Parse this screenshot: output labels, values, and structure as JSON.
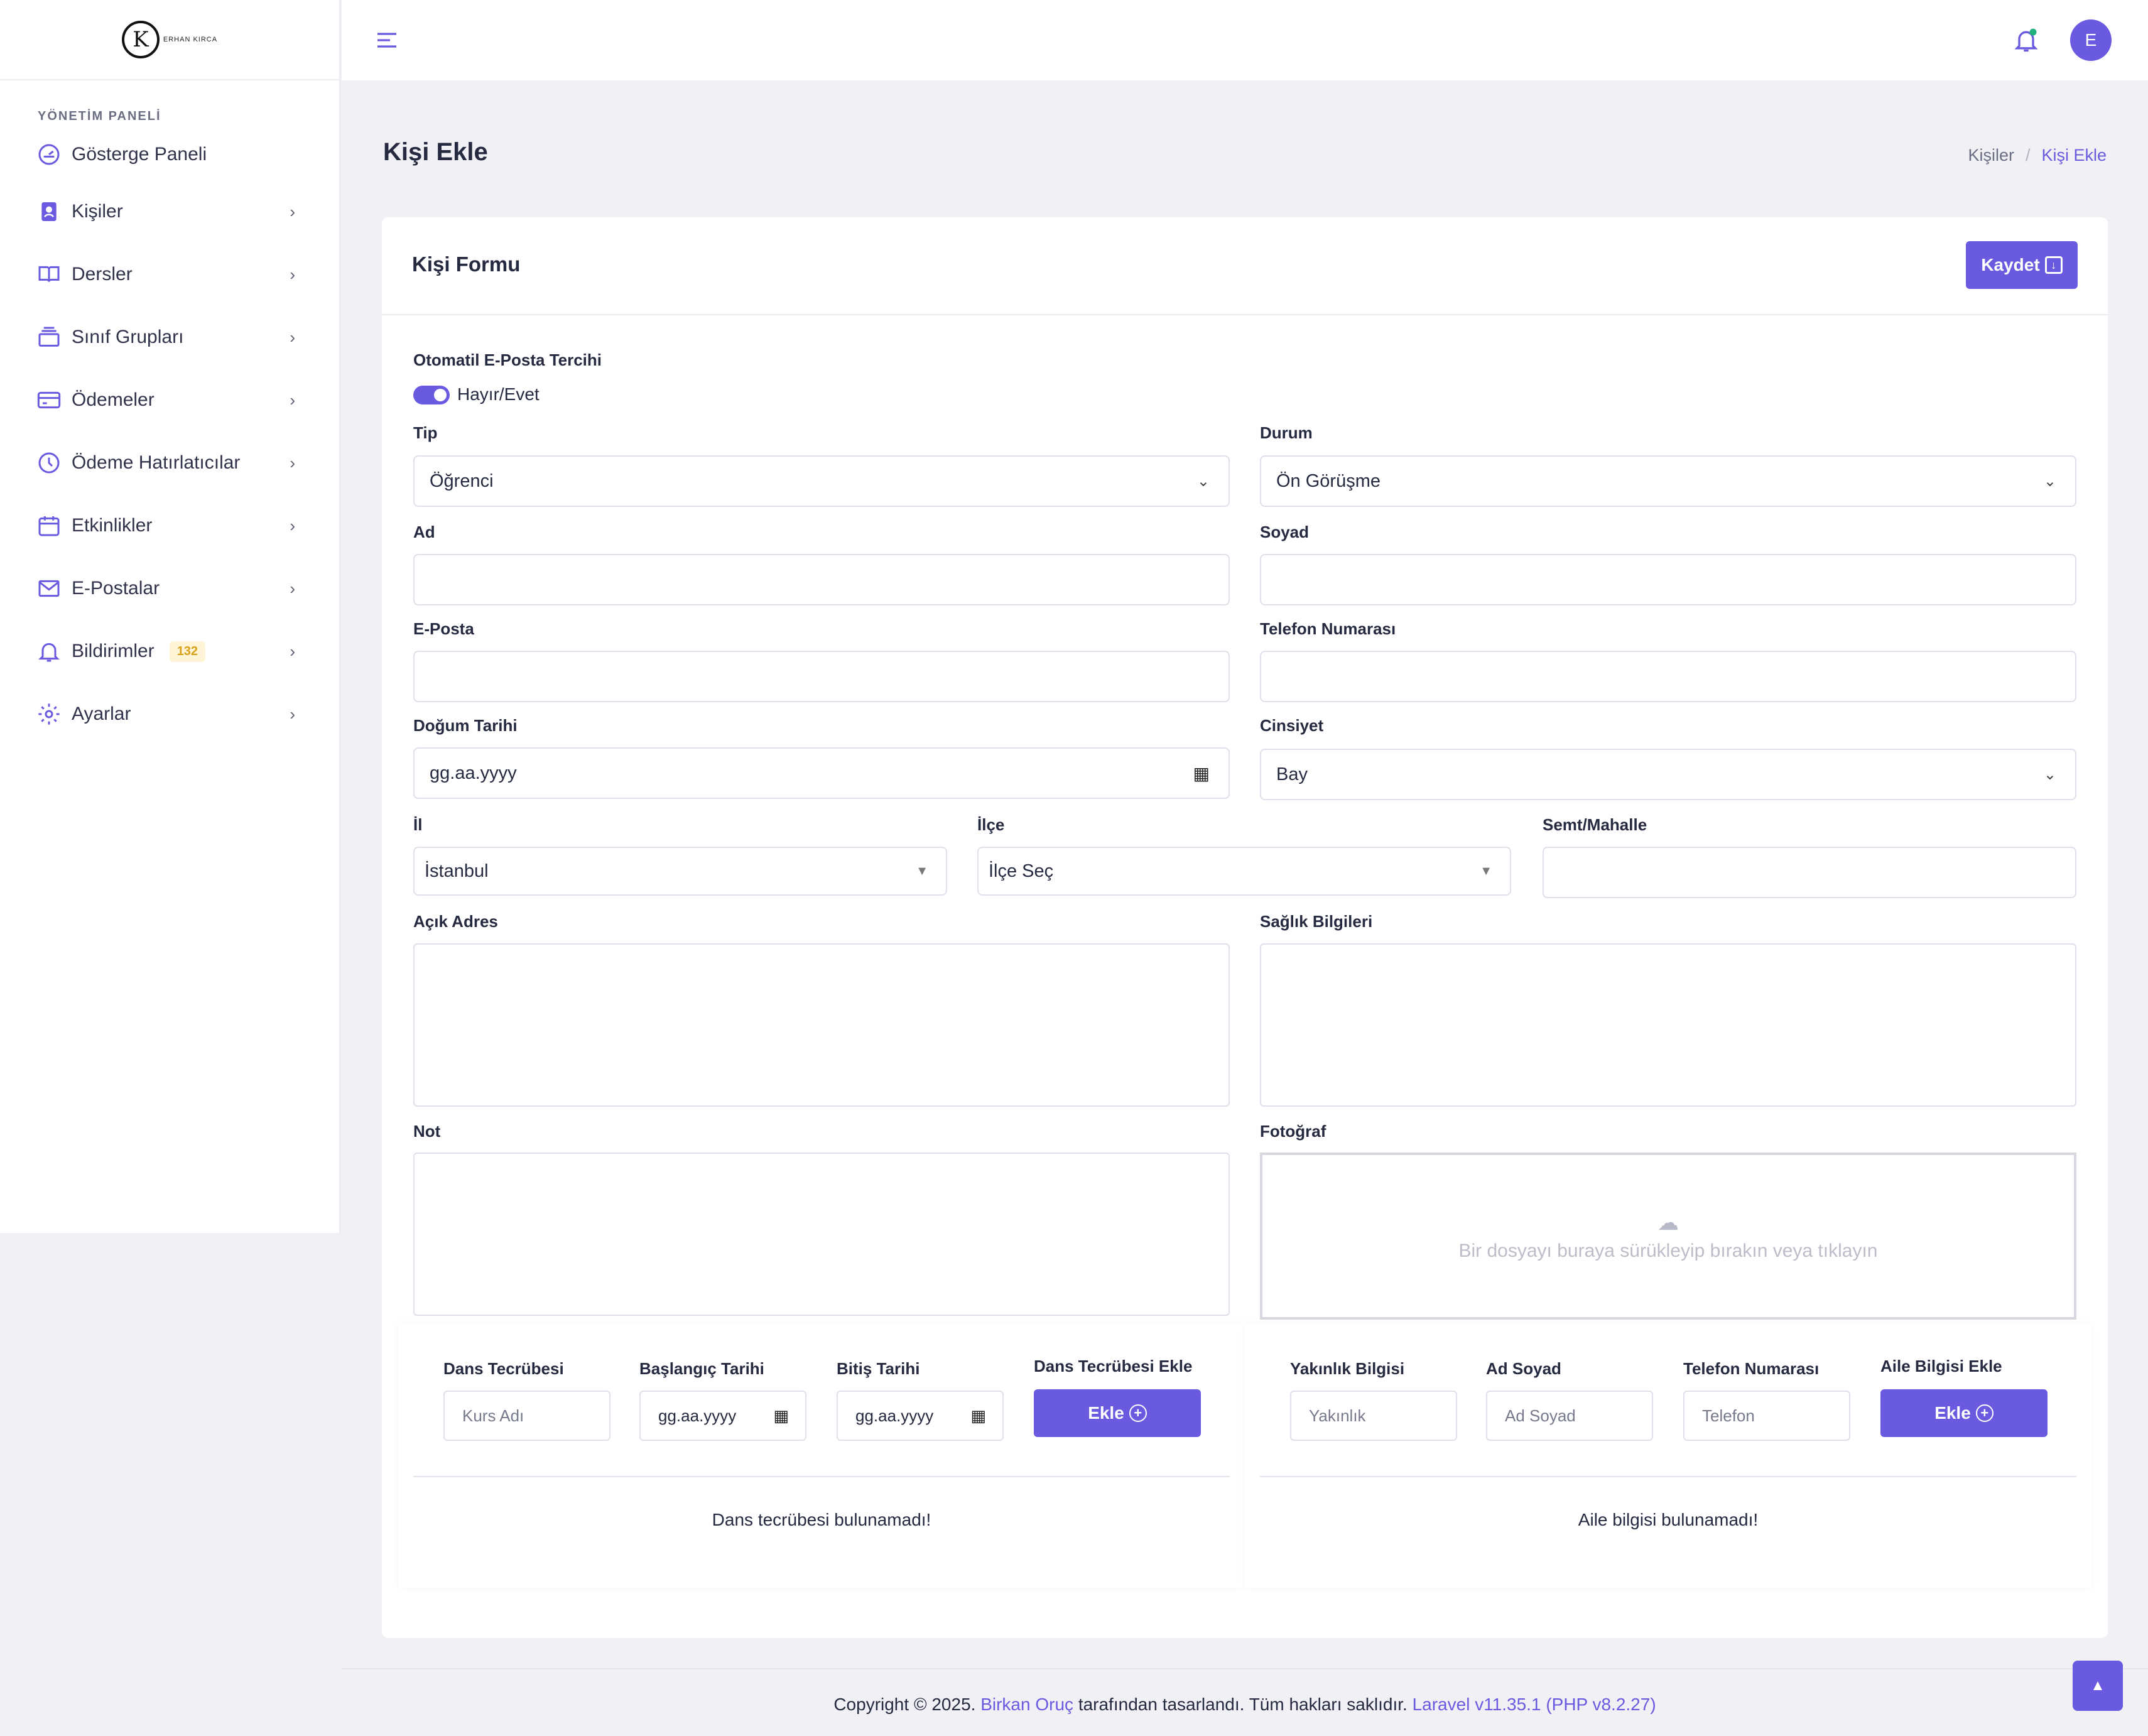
{
  "brand": {
    "logo_text": "ERHAN KIRCA"
  },
  "sidebar": {
    "section_title": "YÖNETİM PANELİ",
    "items": [
      {
        "label": "Gösterge Paneli",
        "icon": "dashboard-icon"
      },
      {
        "label": "Kişiler",
        "icon": "contact-icon"
      },
      {
        "label": "Dersler",
        "icon": "book-icon"
      },
      {
        "label": "Sınıf Grupları",
        "icon": "layers-icon"
      },
      {
        "label": "Ödemeler",
        "icon": "credit-card-icon"
      },
      {
        "label": "Ödeme Hatırlatıcılar",
        "icon": "clock-icon"
      },
      {
        "label": "Etkinlikler",
        "icon": "calendar-icon"
      },
      {
        "label": "E-Postalar",
        "icon": "mail-icon"
      },
      {
        "label": "Bildirimler",
        "icon": "bell-icon",
        "badge": "132"
      },
      {
        "label": "Ayarlar",
        "icon": "gear-icon"
      }
    ]
  },
  "topbar": {
    "avatar_initial": "E"
  },
  "page": {
    "title": "Kişi Ekle",
    "breadcrumb": [
      "Kişiler",
      "/",
      "Kişi Ekle"
    ]
  },
  "form": {
    "card_title": "Kişi Formu",
    "save_label": "Kaydet",
    "auto_email_label": "Otomatil E-Posta Tercihi",
    "toggle_label": "Hayır/Evet",
    "tip": {
      "label": "Tip",
      "value": "Öğrenci"
    },
    "durum": {
      "label": "Durum",
      "value": "Ön Görüşme"
    },
    "ad": {
      "label": "Ad"
    },
    "soyad": {
      "label": "Soyad"
    },
    "eposta": {
      "label": "E-Posta"
    },
    "telefon": {
      "label": "Telefon Numarası"
    },
    "dogum": {
      "label": "Doğum Tarihi",
      "value": "gg.aa.yyyy"
    },
    "cinsiyet": {
      "label": "Cinsiyet",
      "value": "Bay"
    },
    "il": {
      "label": "İl",
      "value": "İstanbul"
    },
    "ilce": {
      "label": "İlçe",
      "value": "İlçe Seç"
    },
    "semt": {
      "label": "Semt/Mahalle"
    },
    "adres": {
      "label": "Açık Adres"
    },
    "saglik": {
      "label": "Sağlık Bilgileri"
    },
    "not": {
      "label": "Not"
    },
    "foto": {
      "label": "Fotoğraf",
      "dropzone_text": "Bir dosyayı buraya sürükleyip bırakın veya tıklayın"
    }
  },
  "dance": {
    "col1": "Dans Tecrübesi",
    "col2": "Başlangıç Tarihi",
    "col3": "Bitiş Tarihi",
    "col4": "Dans Tecrübesi Ekle",
    "course_placeholder": "Kurs Adı",
    "date_value": "gg.aa.yyyy",
    "add_label": "Ekle",
    "empty": "Dans tecrübesi bulunamadı!"
  },
  "family": {
    "col1": "Yakınlık Bilgisi",
    "col2": "Ad Soyad",
    "col3": "Telefon Numarası",
    "col4": "Aile Bilgisi Ekle",
    "relation_placeholder": "Yakınlık",
    "name_placeholder": "Ad Soyad",
    "phone_placeholder": "Telefon",
    "add_label": "Ekle",
    "empty": "Aile bilgisi bulunamadı!"
  },
  "footer": {
    "prefix": "Copyright © 2025.",
    "author": "Birkan Oruç",
    "middle": "tarafından tasarlandı. Tüm hakları saklıdır.",
    "version": "Laravel v11.35.1 (PHP v8.2.27)"
  },
  "colors": {
    "accent": "#6a5ae0",
    "badge_bg": "#fff4d6",
    "badge_fg": "#d9a21b"
  }
}
